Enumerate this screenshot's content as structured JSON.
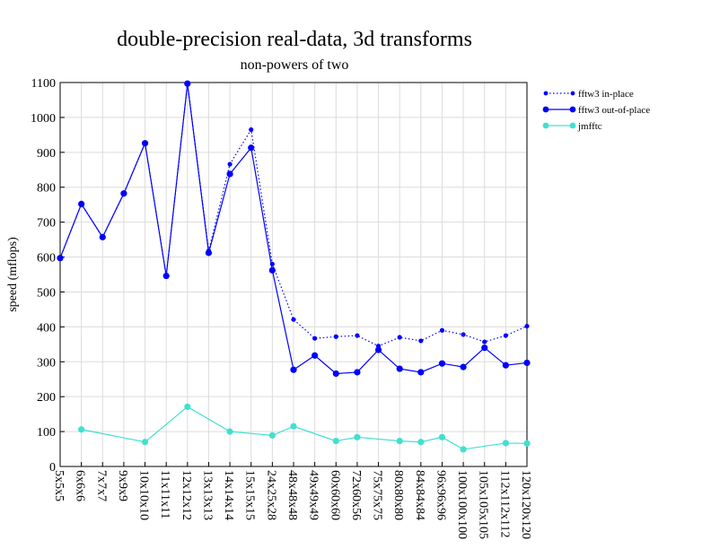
{
  "chart_data": {
    "type": "line",
    "title": "double-precision real-data, 3d transforms",
    "subtitle": "non-powers of two",
    "xlabel": "",
    "ylabel": "speed (mflops)",
    "ylim": [
      0,
      1100
    ],
    "yticks": [
      0,
      100,
      200,
      300,
      400,
      500,
      600,
      700,
      800,
      900,
      1000,
      1100
    ],
    "grid": true,
    "legend_position": "top-right",
    "categories": [
      "5x5x5",
      "6x6x6",
      "7x7x7",
      "9x9x9",
      "10x10x10",
      "11x11x11",
      "12x12x12",
      "13x13x13",
      "14x14x14",
      "15x15x15",
      "24x25x28",
      "48x48x48",
      "49x49x49",
      "60x60x60",
      "72x60x56",
      "75x75x75",
      "80x80x80",
      "84x84x84",
      "96x96x96",
      "100x100x100",
      "105x105x105",
      "112x112x112",
      "120x120x120"
    ],
    "series": [
      {
        "name": "fftw3 in-place",
        "color": "#0000ff",
        "style": "dotted",
        "values": [
          597,
          752,
          657,
          782,
          926,
          546,
          1097,
          618,
          866,
          965,
          580,
          421,
          367,
          372,
          375,
          345,
          370,
          360,
          390,
          378,
          357,
          375,
          402
        ]
      },
      {
        "name": "fftw3 out-of-place",
        "color": "#0000ff",
        "style": "solid",
        "values": [
          597,
          752,
          657,
          782,
          926,
          546,
          1097,
          612,
          838,
          913,
          562,
          277,
          318,
          266,
          270,
          334,
          280,
          270,
          295,
          285,
          340,
          290,
          297
        ]
      },
      {
        "name": "jmfftc",
        "color": "#40e0d0",
        "style": "solid",
        "values": [
          null,
          106,
          null,
          null,
          70,
          null,
          171,
          null,
          100,
          null,
          89,
          115,
          null,
          73,
          84,
          null,
          73,
          70,
          84,
          49,
          null,
          67,
          66
        ]
      }
    ]
  }
}
